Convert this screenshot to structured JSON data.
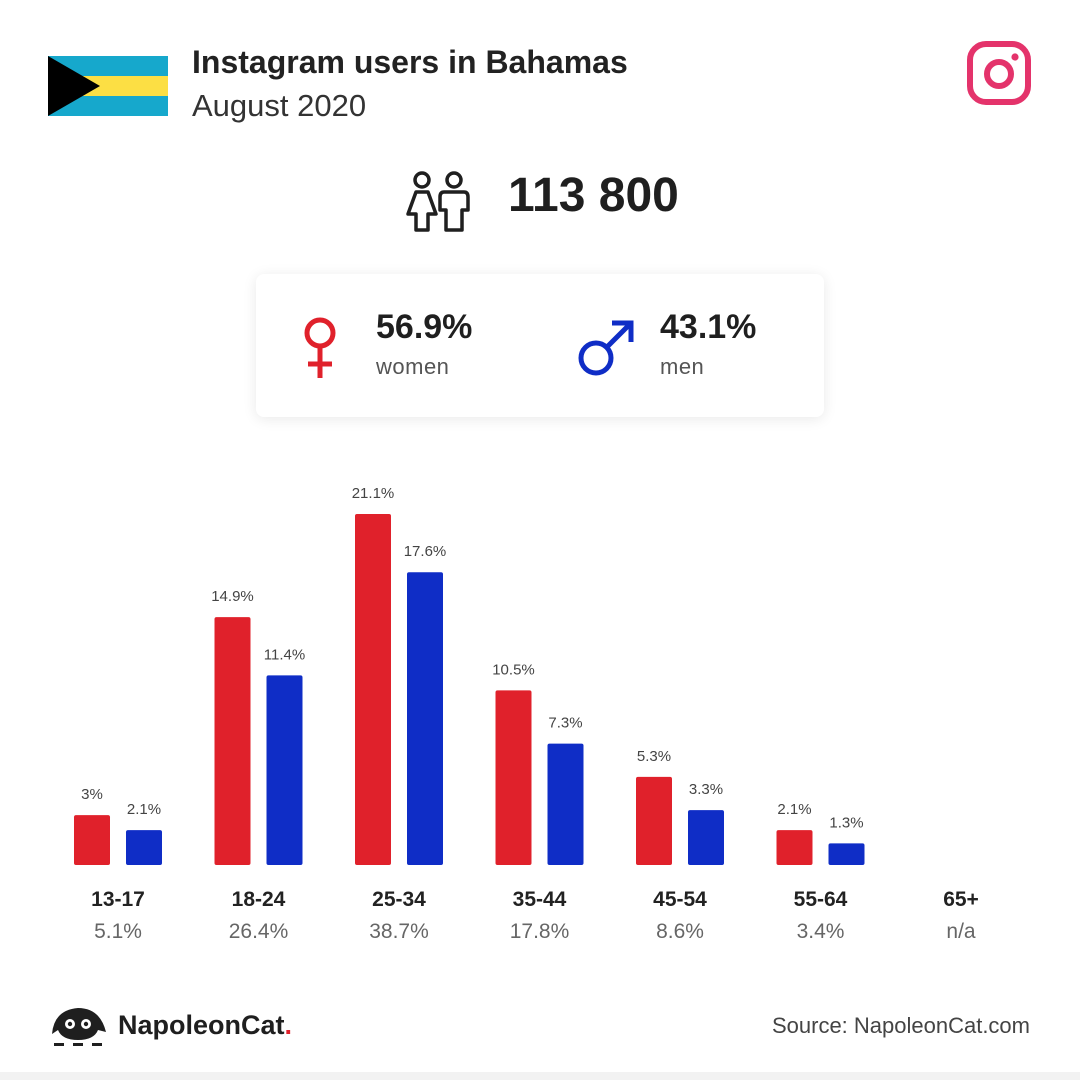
{
  "header": {
    "title": "Instagram users in Bahamas",
    "subtitle": "August 2020"
  },
  "total": {
    "value": "113 800"
  },
  "gender": {
    "women": {
      "pct": "56.9%",
      "label": "women"
    },
    "men": {
      "pct": "43.1%",
      "label": "men"
    }
  },
  "colors": {
    "women": "#e0212b",
    "men": "#0f2dc6",
    "instagram": "#e4336b",
    "flag_aqua": "#16a8cc",
    "flag_gold": "#fcdf44"
  },
  "icons": {
    "flag": "bahamas-flag-icon",
    "instagram": "instagram-icon",
    "people": "people-icon",
    "female": "female-icon",
    "male": "male-icon",
    "brand": "napoleoncat-logo-icon"
  },
  "chart_data": {
    "type": "bar",
    "categories": [
      "13-17",
      "18-24",
      "25-34",
      "35-44",
      "45-54",
      "55-64",
      "65+"
    ],
    "category_totals": [
      "5.1%",
      "26.4%",
      "38.7%",
      "17.8%",
      "8.6%",
      "3.4%",
      "n/a"
    ],
    "series": [
      {
        "values": [
          3,
          14.9,
          21.1,
          10.5,
          5.3,
          2.1,
          null
        ],
        "labels": [
          "3%",
          "14.9%",
          "21.1%",
          "10.5%",
          "5.3%",
          "2.1%",
          ""
        ]
      },
      {
        "values": [
          2.1,
          11.4,
          17.6,
          7.3,
          3.3,
          1.3,
          null
        ],
        "labels": [
          "2.1%",
          "11.4%",
          "17.6%",
          "7.3%",
          "3.3%",
          "1.3%",
          ""
        ]
      }
    ],
    "ylim": [
      0,
      21.1
    ],
    "grid": false,
    "legend": "none"
  },
  "footer": {
    "brand": "NapoleonCat",
    "brand_dot": ".",
    "source": "Source: NapoleonCat.com"
  }
}
